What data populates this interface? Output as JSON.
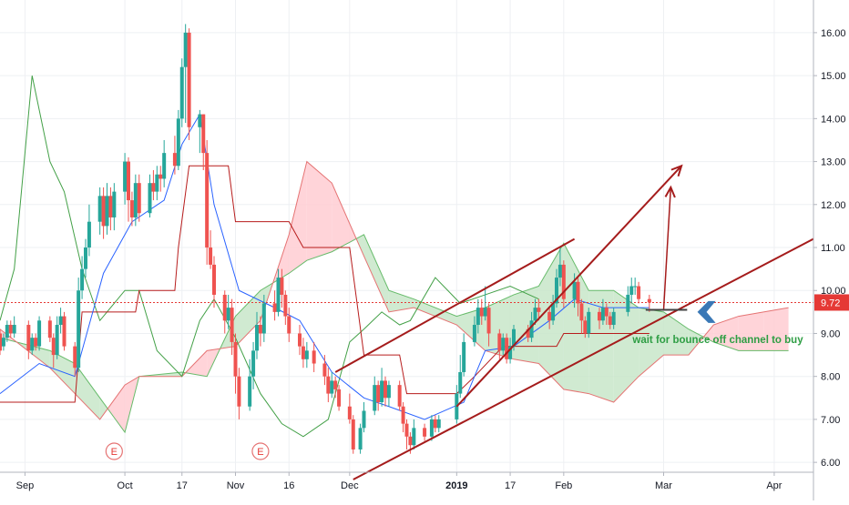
{
  "chart_data": {
    "type": "candlestick",
    "colors": {
      "up": "#26a69a",
      "down": "#ef5350",
      "price_line": "#e53935",
      "conversion_line": "#2962ff",
      "base_line": "#b71c1c",
      "lagging_span": "#43a047",
      "cloud_bull": "#c8e6c9",
      "cloud_bear": "#ffcdd2",
      "channel": "#a51c1c",
      "annotation_text": "#2e9e44",
      "arrow_icon": "#3a78b6"
    },
    "y_axis": {
      "min": 5.77,
      "max": 16.76,
      "ticks": [
        "6.00",
        "7.00",
        "8.00",
        "9.00",
        "10.00",
        "11.00",
        "12.00",
        "13.00",
        "14.00",
        "15.00",
        "16.00"
      ]
    },
    "x_axis": {
      "domain": [
        "2018-08-27",
        "2019-04-12"
      ],
      "ticks": [
        {
          "label": "Sep",
          "date": "2018-09-03"
        },
        {
          "label": "Oct",
          "date": "2018-10-01"
        },
        {
          "label": "17",
          "date": "2018-10-17"
        },
        {
          "label": "Nov",
          "date": "2018-11-01"
        },
        {
          "label": "16",
          "date": "2018-11-16"
        },
        {
          "label": "Dec",
          "date": "2018-12-03"
        },
        {
          "label": "2019",
          "date": "2019-01-02",
          "bold": true
        },
        {
          "label": "17",
          "date": "2019-01-17"
        },
        {
          "label": "Feb",
          "date": "2019-02-01"
        },
        {
          "label": "Mar",
          "date": "2019-03-01"
        },
        {
          "label": "Apr",
          "date": "2019-04-01"
        }
      ]
    },
    "last_price": {
      "value": 9.72,
      "label": "9.72"
    },
    "earnings": [
      {
        "date": "2018-09-28",
        "label": "E"
      },
      {
        "date": "2018-11-08",
        "label": "E"
      }
    ],
    "candles": [
      [
        "2018-08-27",
        9.0,
        8.6,
        9.1,
        8.5
      ],
      [
        "2018-08-28",
        8.7,
        8.9,
        9.0,
        8.6
      ],
      [
        "2018-08-29",
        8.9,
        9.2,
        9.3,
        8.8
      ],
      [
        "2018-08-30",
        9.2,
        9.0,
        9.3,
        8.9
      ],
      [
        "2018-08-31",
        9.0,
        9.2,
        9.4,
        8.9
      ],
      [
        "2018-09-04",
        9.2,
        8.6,
        9.3,
        8.4
      ],
      [
        "2018-09-05",
        8.6,
        8.9,
        9.0,
        8.5
      ],
      [
        "2018-09-06",
        8.9,
        8.7,
        9.0,
        8.6
      ],
      [
        "2018-09-07",
        8.7,
        9.3,
        9.4,
        8.6
      ],
      [
        "2018-09-10",
        9.3,
        8.9,
        9.4,
        8.8
      ],
      [
        "2018-09-11",
        8.9,
        8.5,
        9.0,
        8.2
      ],
      [
        "2018-09-12",
        8.5,
        9.2,
        9.4,
        8.4
      ],
      [
        "2018-09-13",
        9.2,
        9.4,
        9.6,
        9.0
      ],
      [
        "2018-09-14",
        9.4,
        8.7,
        9.5,
        8.6
      ],
      [
        "2018-09-17",
        8.7,
        8.2,
        8.8,
        8.0
      ],
      [
        "2018-09-18",
        8.2,
        10.0,
        10.3,
        8.1
      ],
      [
        "2018-09-19",
        10.0,
        10.5,
        10.8,
        9.8
      ],
      [
        "2018-09-20",
        10.5,
        11.0,
        11.2,
        10.3
      ],
      [
        "2018-09-21",
        11.0,
        11.6,
        12.0,
        10.8
      ],
      [
        "2018-09-24",
        11.6,
        12.2,
        12.4,
        11.3
      ],
      [
        "2018-09-25",
        12.2,
        11.5,
        12.4,
        11.2
      ],
      [
        "2018-09-26",
        11.5,
        12.2,
        12.5,
        11.3
      ],
      [
        "2018-09-27",
        12.2,
        11.7,
        12.4,
        11.4
      ],
      [
        "2018-09-28",
        11.7,
        12.3,
        12.5,
        11.4
      ],
      [
        "2018-10-01",
        12.3,
        13.0,
        13.2,
        12.0
      ],
      [
        "2018-10-02",
        13.0,
        12.1,
        13.1,
        11.6
      ],
      [
        "2018-10-03",
        12.1,
        11.7,
        12.3,
        11.5
      ],
      [
        "2018-10-04",
        11.7,
        12.5,
        12.7,
        11.5
      ],
      [
        "2018-10-05",
        12.5,
        11.8,
        12.7,
        11.6
      ],
      [
        "2018-10-08",
        11.8,
        12.5,
        12.7,
        11.7
      ],
      [
        "2018-10-09",
        12.5,
        12.3,
        12.8,
        12.1
      ],
      [
        "2018-10-10",
        12.3,
        12.7,
        12.9,
        12.1
      ],
      [
        "2018-10-11",
        12.7,
        12.6,
        12.9,
        12.3
      ],
      [
        "2018-10-12",
        12.6,
        13.2,
        13.5,
        12.4
      ],
      [
        "2018-10-15",
        13.2,
        12.9,
        13.6,
        12.7
      ],
      [
        "2018-10-16",
        12.9,
        14.0,
        14.2,
        12.8
      ],
      [
        "2018-10-17",
        14.0,
        15.2,
        15.4,
        13.8
      ],
      [
        "2018-10-18",
        15.2,
        16.0,
        16.2,
        13.9
      ],
      [
        "2018-10-19",
        16.0,
        13.8,
        16.1,
        13.5
      ],
      [
        "2018-10-22",
        13.8,
        14.1,
        14.2,
        13.2
      ],
      [
        "2018-10-23",
        14.1,
        13.2,
        14.1,
        12.8
      ],
      [
        "2018-10-24",
        13.2,
        11.0,
        13.5,
        10.6
      ],
      [
        "2018-10-25",
        11.0,
        10.6,
        11.4,
        10.5
      ],
      [
        "2018-10-26",
        10.6,
        9.9,
        10.8,
        9.6
      ],
      [
        "2018-10-29",
        9.9,
        9.3,
        10.0,
        9.0
      ],
      [
        "2018-10-30",
        9.3,
        9.6,
        9.9,
        9.1
      ],
      [
        "2018-10-31",
        9.6,
        8.8,
        9.8,
        8.5
      ],
      [
        "2018-11-01",
        8.8,
        8.0,
        9.0,
        7.6
      ],
      [
        "2018-11-02",
        8.0,
        7.3,
        8.2,
        7.0
      ],
      [
        "2018-11-05",
        7.3,
        8.0,
        8.4,
        7.2
      ],
      [
        "2018-11-06",
        8.0,
        8.6,
        8.8,
        7.7
      ],
      [
        "2018-11-07",
        8.6,
        9.2,
        9.5,
        8.4
      ],
      [
        "2018-11-08",
        9.2,
        9.0,
        9.4,
        8.7
      ],
      [
        "2018-11-09",
        9.0,
        9.7,
        9.9,
        8.8
      ],
      [
        "2018-11-12",
        9.7,
        9.5,
        10.0,
        9.3
      ],
      [
        "2018-11-13",
        9.5,
        10.3,
        10.5,
        9.4
      ],
      [
        "2018-11-14",
        10.3,
        9.9,
        10.5,
        9.6
      ],
      [
        "2018-11-15",
        9.9,
        9.4,
        10.0,
        9.2
      ],
      [
        "2018-11-16",
        9.4,
        9.0,
        9.6,
        8.8
      ],
      [
        "2018-11-19",
        9.0,
        8.7,
        9.2,
        8.5
      ],
      [
        "2018-11-20",
        8.7,
        8.4,
        8.9,
        8.2
      ],
      [
        "2018-11-21",
        8.4,
        8.6,
        8.8,
        8.2
      ],
      [
        "2018-11-23",
        8.6,
        8.3,
        8.8,
        8.1
      ],
      [
        "2018-11-26",
        8.3,
        8.0,
        8.5,
        7.8
      ],
      [
        "2018-11-27",
        8.0,
        7.6,
        8.2,
        7.4
      ],
      [
        "2018-11-28",
        7.6,
        7.9,
        8.1,
        7.5
      ],
      [
        "2018-11-29",
        7.9,
        7.7,
        8.0,
        7.5
      ],
      [
        "2018-11-30",
        7.7,
        7.3,
        7.8,
        7.2
      ],
      [
        "2018-12-03",
        7.3,
        7.0,
        7.6,
        6.9
      ],
      [
        "2018-12-04",
        7.0,
        6.3,
        7.1,
        6.2
      ],
      [
        "2018-12-06",
        6.3,
        6.8,
        6.9,
        6.2
      ],
      [
        "2018-12-07",
        6.8,
        7.2,
        7.4,
        6.7
      ],
      [
        "2018-12-10",
        7.2,
        7.8,
        8.0,
        7.1
      ],
      [
        "2018-12-11",
        7.8,
        7.4,
        7.9,
        7.2
      ],
      [
        "2018-12-12",
        7.4,
        7.9,
        8.2,
        7.3
      ],
      [
        "2018-12-13",
        7.9,
        7.5,
        8.0,
        7.3
      ],
      [
        "2018-12-14",
        7.5,
        7.8,
        7.9,
        7.3
      ],
      [
        "2018-12-17",
        7.8,
        7.3,
        7.9,
        7.2
      ],
      [
        "2018-12-18",
        7.3,
        6.9,
        7.4,
        6.7
      ],
      [
        "2018-12-19",
        6.9,
        6.6,
        7.0,
        6.3
      ],
      [
        "2018-12-20",
        6.6,
        6.4,
        6.7,
        6.2
      ],
      [
        "2018-12-21",
        6.4,
        6.8,
        7.0,
        6.3
      ],
      [
        "2018-12-24",
        6.8,
        6.6,
        6.9,
        6.5
      ],
      [
        "2018-12-26",
        6.6,
        7.0,
        7.1,
        6.5
      ],
      [
        "2018-12-27",
        7.0,
        6.8,
        7.1,
        6.7
      ],
      [
        "2018-12-28",
        6.8,
        7.0,
        7.1,
        6.7
      ],
      [
        "2019-01-02",
        7.0,
        7.6,
        7.8,
        6.9
      ],
      [
        "2019-01-03",
        7.6,
        8.1,
        8.5,
        7.5
      ],
      [
        "2019-01-04",
        8.1,
        8.8,
        9.0,
        8.0
      ],
      [
        "2019-01-07",
        8.8,
        9.2,
        9.4,
        8.7
      ],
      [
        "2019-01-08",
        9.2,
        9.6,
        9.8,
        9.0
      ],
      [
        "2019-01-09",
        9.6,
        9.4,
        9.8,
        9.2
      ],
      [
        "2019-01-10",
        9.4,
        9.6,
        10.1,
        9.3
      ],
      [
        "2019-01-11",
        9.6,
        9.0,
        9.7,
        8.7
      ],
      [
        "2019-01-14",
        9.0,
        8.6,
        9.1,
        8.4
      ],
      [
        "2019-01-15",
        8.6,
        8.9,
        9.0,
        8.5
      ],
      [
        "2019-01-16",
        8.9,
        8.4,
        9.0,
        8.3
      ],
      [
        "2019-01-17",
        8.4,
        8.7,
        8.9,
        8.3
      ],
      [
        "2019-01-18",
        8.7,
        9.1,
        9.2,
        8.6
      ],
      [
        "2019-01-22",
        9.1,
        8.9,
        9.2,
        8.8
      ],
      [
        "2019-01-23",
        8.9,
        9.3,
        9.5,
        8.8
      ],
      [
        "2019-01-24",
        9.3,
        9.6,
        9.8,
        9.2
      ],
      [
        "2019-01-25",
        9.6,
        9.5,
        9.8,
        9.3
      ],
      [
        "2019-01-28",
        9.5,
        9.3,
        9.6,
        9.1
      ],
      [
        "2019-01-29",
        9.3,
        9.7,
        9.9,
        9.2
      ],
      [
        "2019-01-30",
        9.7,
        10.3,
        10.5,
        9.6
      ],
      [
        "2019-01-31",
        10.3,
        10.6,
        11.0,
        10.1
      ],
      [
        "2019-02-01",
        10.6,
        9.8,
        10.7,
        9.6
      ],
      [
        "2019-02-04",
        9.8,
        10.2,
        10.4,
        9.6
      ],
      [
        "2019-02-05",
        10.2,
        9.7,
        10.3,
        9.4
      ],
      [
        "2019-02-06",
        9.7,
        9.3,
        9.8,
        9.0
      ],
      [
        "2019-02-07",
        9.3,
        9.0,
        9.4,
        8.9
      ],
      [
        "2019-02-08",
        9.0,
        9.5,
        9.6,
        8.9
      ],
      [
        "2019-02-11",
        9.5,
        9.3,
        9.6,
        9.1
      ],
      [
        "2019-02-12",
        9.3,
        9.6,
        9.8,
        9.2
      ],
      [
        "2019-02-13",
        9.6,
        9.4,
        9.7,
        9.2
      ],
      [
        "2019-02-14",
        9.4,
        9.2,
        9.5,
        9.1
      ],
      [
        "2019-02-15",
        9.2,
        9.5,
        9.6,
        9.1
      ],
      [
        "2019-02-19",
        9.5,
        9.9,
        10.1,
        9.4
      ],
      [
        "2019-02-20",
        9.9,
        10.1,
        10.3,
        9.7
      ],
      [
        "2019-02-21",
        10.1,
        10.1,
        10.3,
        9.9
      ],
      [
        "2019-02-22",
        10.1,
        9.8,
        10.2,
        9.7
      ],
      [
        "2019-02-25",
        9.8,
        9.72,
        9.9,
        9.5
      ]
    ],
    "conversion_line": [
      [
        "2018-08-27",
        7.6
      ],
      [
        "2018-09-07",
        8.3
      ],
      [
        "2018-09-17",
        8.0
      ],
      [
        "2018-09-25",
        10.4
      ],
      [
        "2018-10-03",
        11.6
      ],
      [
        "2018-10-12",
        12.1
      ],
      [
        "2018-10-17",
        13.4
      ],
      [
        "2018-10-22",
        14.1
      ],
      [
        "2018-10-26",
        12.0
      ],
      [
        "2018-11-02",
        10.0
      ],
      [
        "2018-11-12",
        9.6
      ],
      [
        "2018-11-19",
        9.3
      ],
      [
        "2018-11-28",
        8.1
      ],
      [
        "2018-12-07",
        7.5
      ],
      [
        "2018-12-14",
        7.3
      ],
      [
        "2018-12-24",
        7.0
      ],
      [
        "2019-01-04",
        7.4
      ],
      [
        "2019-01-10",
        8.6
      ],
      [
        "2019-01-18",
        8.7
      ],
      [
        "2019-01-28",
        9.3
      ],
      [
        "2019-02-04",
        9.8
      ],
      [
        "2019-02-12",
        9.6
      ],
      [
        "2019-02-25",
        9.6
      ]
    ],
    "base_line": [
      [
        "2018-08-27",
        7.4
      ],
      [
        "2018-09-17",
        7.4
      ],
      [
        "2018-09-19",
        9.5
      ],
      [
        "2018-10-04",
        9.5
      ],
      [
        "2018-10-05",
        10.0
      ],
      [
        "2018-10-15",
        10.0
      ],
      [
        "2018-10-16",
        11.0
      ],
      [
        "2018-10-19",
        12.9
      ],
      [
        "2018-10-30",
        12.9
      ],
      [
        "2018-11-01",
        11.6
      ],
      [
        "2018-11-16",
        11.6
      ],
      [
        "2018-11-20",
        11.0
      ],
      [
        "2018-12-03",
        11.0
      ],
      [
        "2018-12-07",
        8.5
      ],
      [
        "2018-12-17",
        8.5
      ],
      [
        "2018-12-19",
        7.6
      ],
      [
        "2019-01-02",
        7.6
      ],
      [
        "2019-01-07",
        8.0
      ],
      [
        "2019-01-15",
        8.7
      ],
      [
        "2019-01-30",
        8.7
      ],
      [
        "2019-02-01",
        9.0
      ],
      [
        "2019-02-25",
        9.0
      ]
    ],
    "lagging_span": [
      [
        "2018-08-27",
        9.3
      ],
      [
        "2018-08-31",
        10.5
      ],
      [
        "2018-09-05",
        15.0
      ],
      [
        "2018-09-10",
        13.0
      ],
      [
        "2018-09-14",
        12.3
      ],
      [
        "2018-09-19",
        10.5
      ],
      [
        "2018-09-24",
        9.3
      ],
      [
        "2018-10-01",
        10.0
      ],
      [
        "2018-10-05",
        10.0
      ],
      [
        "2018-10-10",
        8.6
      ],
      [
        "2018-10-17",
        8.0
      ],
      [
        "2018-10-22",
        9.3
      ],
      [
        "2018-10-26",
        9.8
      ],
      [
        "2018-11-01",
        8.9
      ],
      [
        "2018-11-08",
        7.6
      ],
      [
        "2018-11-14",
        6.9
      ],
      [
        "2018-11-20",
        6.6
      ],
      [
        "2018-11-27",
        7.0
      ],
      [
        "2018-12-03",
        8.8
      ],
      [
        "2018-12-07",
        9.1
      ],
      [
        "2018-12-12",
        9.5
      ],
      [
        "2018-12-17",
        9.2
      ],
      [
        "2018-12-20",
        9.3
      ],
      [
        "2018-12-27",
        10.3
      ],
      [
        "2019-01-03",
        9.7
      ],
      [
        "2019-01-10",
        9.9
      ],
      [
        "2019-01-17",
        10.1
      ],
      [
        "2019-01-25",
        9.8
      ]
    ],
    "cloud": [
      [
        "2018-08-27",
        8.9,
        9.1
      ],
      [
        "2018-09-10",
        8.6,
        8.2
      ],
      [
        "2018-09-17",
        8.3,
        7.6
      ],
      [
        "2018-09-24",
        7.5,
        7.0
      ],
      [
        "2018-10-01",
        6.7,
        7.8
      ],
      [
        "2018-10-05",
        8.0,
        8.0
      ],
      [
        "2018-10-17",
        8.1,
        8.0
      ],
      [
        "2018-10-24",
        8.0,
        8.6
      ],
      [
        "2018-11-01",
        9.4,
        8.7
      ],
      [
        "2018-11-08",
        10.0,
        9.3
      ],
      [
        "2018-11-16",
        10.4,
        11.3
      ],
      [
        "2018-11-21",
        10.7,
        13.0
      ],
      [
        "2018-11-28",
        10.9,
        12.5
      ],
      [
        "2018-12-07",
        11.3,
        10.8
      ],
      [
        "2018-12-14",
        10.0,
        9.5
      ],
      [
        "2018-12-21",
        9.8,
        9.6
      ],
      [
        "2019-01-02",
        9.4,
        9.2
      ],
      [
        "2019-01-10",
        9.6,
        8.6
      ],
      [
        "2019-01-18",
        9.9,
        8.4
      ],
      [
        "2019-01-25",
        10.1,
        8.3
      ],
      [
        "2019-02-01",
        11.1,
        7.7
      ],
      [
        "2019-02-08",
        10.0,
        7.6
      ],
      [
        "2019-02-15",
        10.0,
        7.4
      ],
      [
        "2019-02-22",
        9.6,
        8.0
      ],
      [
        "2019-03-01",
        9.5,
        8.5
      ],
      [
        "2019-03-08",
        9.1,
        8.5
      ],
      [
        "2019-03-15",
        8.8,
        9.2
      ],
      [
        "2019-03-22",
        8.6,
        9.4
      ],
      [
        "2019-03-29",
        8.6,
        9.5
      ],
      [
        "2019-04-05",
        8.6,
        9.6
      ]
    ],
    "channel": {
      "upper": [
        [
          "2018-11-29",
          8.1
        ],
        [
          "2019-02-04",
          11.2
        ]
      ],
      "lower": [
        [
          "2018-12-04",
          5.6
        ],
        [
          "2019-04-12",
          11.2
        ]
      ],
      "projection_arrow": [
        [
          "2019-01-02",
          7.3
        ],
        [
          "2019-03-06",
          12.9
        ]
      ]
    },
    "target_arrow": [
      [
        "2019-03-01",
        9.55
      ],
      [
        "2019-03-03",
        12.4
      ]
    ],
    "annotation": {
      "text": "wait for bounce off channel to buy"
    }
  }
}
